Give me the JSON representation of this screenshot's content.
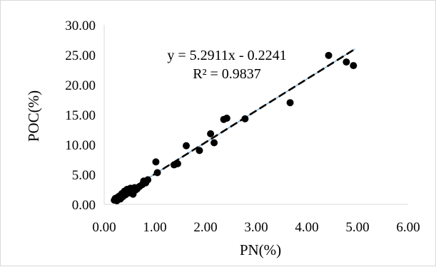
{
  "chart_data": {
    "type": "scatter",
    "title": "",
    "xlabel": "PN(%)",
    "ylabel": "POC(%)",
    "xlim": [
      0,
      6
    ],
    "ylim": [
      0,
      30
    ],
    "x_ticks": [
      "0.00",
      "1.00",
      "2.00",
      "3.00",
      "4.00",
      "5.00",
      "6.00"
    ],
    "y_ticks": [
      "0.00",
      "5.00",
      "10.00",
      "15.00",
      "20.00",
      "25.00",
      "30.00"
    ],
    "grid": false,
    "legend": false,
    "marker_color": "#000000",
    "trendline": {
      "slope": 5.2911,
      "intercept": -0.2241,
      "color": "#000000",
      "style": "dashed",
      "overlay_color": "#7fb2d8",
      "x_range": [
        0.2,
        4.95
      ]
    },
    "annotations": {
      "equation": "y = 5.2911x - 0.2241",
      "r_squared": "R² = 0.9837"
    },
    "x": [
      0.2,
      0.22,
      0.25,
      0.27,
      0.3,
      0.32,
      0.35,
      0.37,
      0.4,
      0.42,
      0.45,
      0.47,
      0.5,
      0.52,
      0.55,
      0.57,
      0.6,
      0.62,
      0.65,
      0.7,
      0.75,
      0.78,
      0.82,
      0.86,
      1.02,
      1.05,
      1.38,
      1.45,
      1.62,
      1.88,
      2.1,
      2.17,
      2.36,
      2.42,
      2.78,
      3.67,
      4.43,
      4.78,
      4.92
    ],
    "y": [
      0.7,
      1.0,
      0.6,
      1.2,
      1.4,
      0.9,
      1.8,
      1.3,
      2.2,
      1.6,
      2.5,
      2.0,
      1.9,
      2.7,
      2.3,
      1.7,
      2.8,
      2.4,
      2.6,
      3.0,
      3.3,
      3.9,
      3.6,
      4.1,
      7.1,
      5.3,
      6.6,
      6.8,
      9.8,
      9.0,
      11.8,
      10.3,
      14.2,
      14.4,
      14.3,
      17.0,
      24.9,
      23.8,
      23.2
    ]
  }
}
